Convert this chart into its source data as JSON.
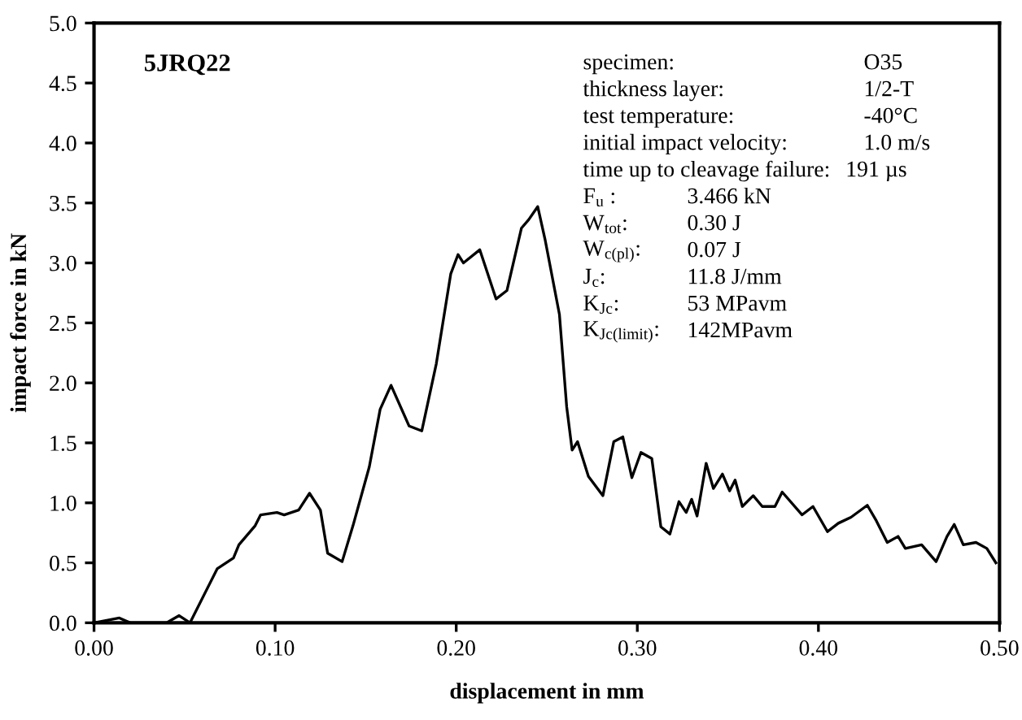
{
  "chart_data": {
    "type": "line",
    "xlabel": "displacement in mm",
    "ylabel": "impact force in kN",
    "x": [
      0.0,
      0.014,
      0.02,
      0.04,
      0.047,
      0.053,
      0.068,
      0.077,
      0.08,
      0.089,
      0.092,
      0.101,
      0.105,
      0.113,
      0.119,
      0.125,
      0.129,
      0.137,
      0.143,
      0.152,
      0.158,
      0.164,
      0.174,
      0.181,
      0.189,
      0.197,
      0.201,
      0.204,
      0.213,
      0.222,
      0.228,
      0.236,
      0.24,
      0.245,
      0.249,
      0.257,
      0.261,
      0.264,
      0.267,
      0.273,
      0.281,
      0.287,
      0.292,
      0.297,
      0.302,
      0.308,
      0.313,
      0.318,
      0.323,
      0.327,
      0.33,
      0.333,
      0.338,
      0.342,
      0.347,
      0.351,
      0.354,
      0.358,
      0.364,
      0.369,
      0.376,
      0.38,
      0.391,
      0.397,
      0.405,
      0.411,
      0.418,
      0.427,
      0.432,
      0.438,
      0.444,
      0.448,
      0.457,
      0.465,
      0.471,
      0.475,
      0.48,
      0.487,
      0.493,
      0.498
    ],
    "series": [
      {
        "color": "#000000",
        "values": [
          0.0,
          0.04,
          0.0,
          0.0,
          0.06,
          0.0,
          0.45,
          0.54,
          0.65,
          0.81,
          0.9,
          0.92,
          0.9,
          0.94,
          1.08,
          0.94,
          0.58,
          0.51,
          0.81,
          1.3,
          1.78,
          1.98,
          1.64,
          1.6,
          2.16,
          2.91,
          3.07,
          3.0,
          3.11,
          2.7,
          2.77,
          3.29,
          3.36,
          3.47,
          3.2,
          2.57,
          1.8,
          1.44,
          1.51,
          1.22,
          1.06,
          1.51,
          1.55,
          1.21,
          1.42,
          1.37,
          0.8,
          0.74,
          1.01,
          0.92,
          1.03,
          0.89,
          1.33,
          1.12,
          1.24,
          1.1,
          1.19,
          0.97,
          1.06,
          0.97,
          0.97,
          1.09,
          0.9,
          0.97,
          0.76,
          0.83,
          0.88,
          0.98,
          0.85,
          0.67,
          0.72,
          0.62,
          0.65,
          0.51,
          0.72,
          0.82,
          0.65,
          0.67,
          0.62,
          0.5
        ]
      }
    ],
    "xlim": [
      0,
      0.5
    ],
    "xticks": [
      {
        "value": 0,
        "label": "0.00"
      },
      {
        "value": 0.1,
        "label": "0.10"
      },
      {
        "value": 0.2,
        "label": "0.20"
      },
      {
        "value": 0.3,
        "label": "0.30"
      },
      {
        "value": 0.4,
        "label": "0.40"
      },
      {
        "value": 0.5,
        "label": "0.50"
      }
    ],
    "ylim": [
      0,
      5
    ],
    "yticks": [
      {
        "value": 0,
        "label": "0.0"
      },
      {
        "value": 0.5,
        "label": "0.5"
      },
      {
        "value": 1,
        "label": "1.0"
      },
      {
        "value": 1.5,
        "label": "1.5"
      },
      {
        "value": 2,
        "label": "2.0"
      },
      {
        "value": 2.5,
        "label": "2.5"
      },
      {
        "value": 3,
        "label": "3.0"
      },
      {
        "value": 3.5,
        "label": "3.5"
      },
      {
        "value": 4,
        "label": "4.0"
      },
      {
        "value": 4.5,
        "label": "4.5"
      },
      {
        "value": 5,
        "label": "5.0"
      }
    ],
    "grid": false,
    "marker": "none",
    "line_style": "solid",
    "annotations": [
      "5JRQ22",
      "specimen:",
      "O35",
      "thickness layer:",
      "1/2-T",
      "test temperature:",
      "-40°C",
      "initial impact velocity:",
      "1.0 m/s",
      "time up to cleavage failure:",
      "191 µs",
      "F$_{u}$ :",
      "3.466 kN",
      "W$_{tot}$:",
      "0.30 J",
      "W$_{c(pl)}$:",
      "0.07 J",
      "J$_{c}$:",
      "11.8 J/mm",
      "K$_{Jc}$:",
      "53 MPavm",
      "K$_{Jc(limit)}$:",
      "142MPavm"
    ]
  }
}
